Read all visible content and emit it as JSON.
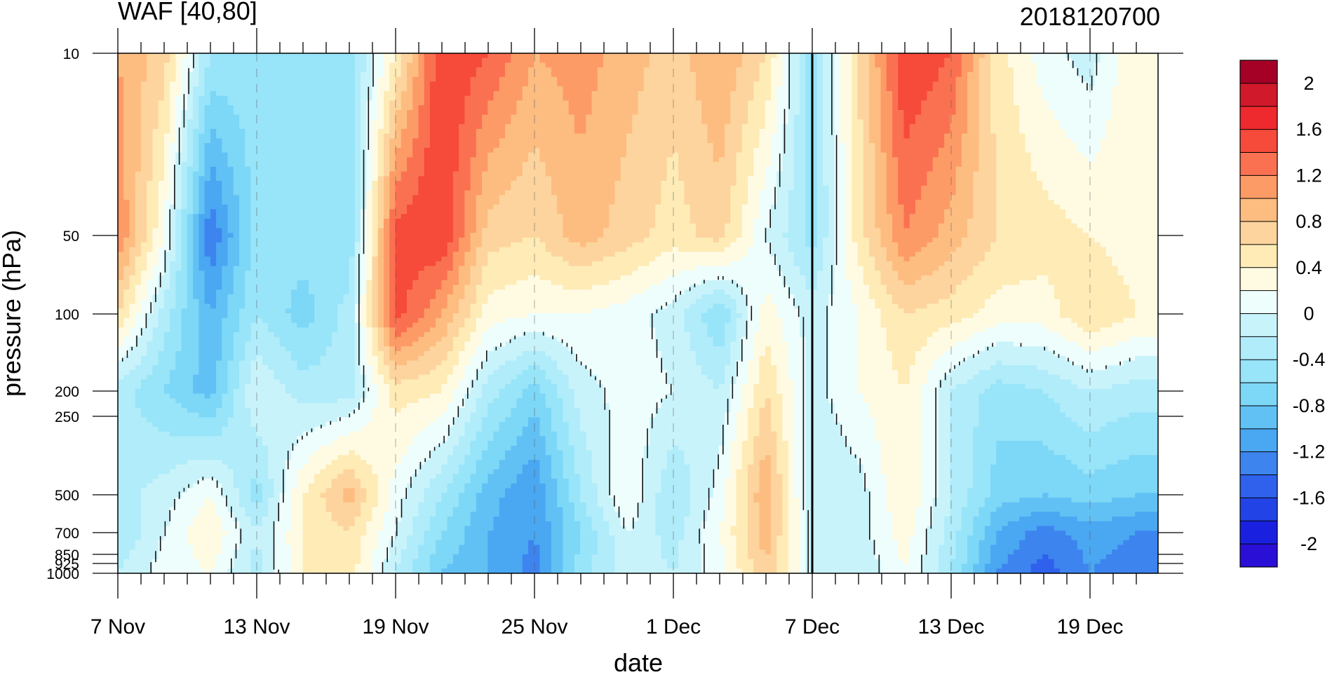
{
  "chart_data": {
    "type": "heatmap",
    "title": "WAF [40,80]",
    "subtitle": "2018120700",
    "xlabel": "date",
    "ylabel": "pressure (hPa)",
    "x_tick_labels": [
      "7 Nov",
      "13 Nov",
      "19 Nov",
      "25 Nov",
      "1 Dec",
      "7 Dec",
      "13 Dec",
      "19 Dec"
    ],
    "x_range": [
      "2018-11-07",
      "2018-12-22"
    ],
    "y_tick_labels": [
      "10",
      "50",
      "100",
      "200",
      "250",
      "500",
      "700",
      "850",
      "925",
      "1000"
    ],
    "y_levels": [
      10,
      50,
      100,
      200,
      250,
      500,
      700,
      850,
      925,
      1000
    ],
    "y_scale": "log-like pressure, inverted",
    "forecast_start_line": "7 Dec",
    "dashed_gridlines_at": [
      "13 Nov",
      "19 Nov",
      "25 Nov",
      "1 Dec",
      "13 Dec",
      "19 Dec"
    ],
    "colorbar": {
      "labels": [
        "2",
        "1.6",
        "1.2",
        "0.8",
        "0.4",
        "0",
        "-0.4",
        "-0.8",
        "-1.2",
        "-1.6",
        "-2"
      ],
      "levels": [
        2.2,
        2.0,
        1.8,
        1.6,
        1.4,
        1.2,
        1.0,
        0.8,
        0.6,
        0.4,
        0.2,
        0.0,
        -0.2,
        -0.4,
        -0.6,
        -0.8,
        -1.0,
        -1.2,
        -1.4,
        -1.6,
        -1.8,
        -2.0,
        -2.2
      ],
      "colors": [
        "#a50026",
        "#d0192b",
        "#ee2a2f",
        "#f64a3b",
        "#fa7151",
        "#fd9b67",
        "#fdbd81",
        "#fdd49e",
        "#feebb6",
        "#fffbe3",
        "#eefefd",
        "#c9f3fb",
        "#b0ecfa",
        "#98e4f9",
        "#7dd7f7",
        "#62c1f4",
        "#4aa7f2",
        "#3d84ef",
        "#2f61ec",
        "#2244e6",
        "#1a20e0",
        "#2a0fd6"
      ]
    },
    "field_description": {
      "dates": [
        "7 Nov",
        "9 Nov",
        "11 Nov",
        "13 Nov",
        "15 Nov",
        "17 Nov",
        "19 Nov",
        "21 Nov",
        "23 Nov",
        "25 Nov",
        "27 Nov",
        "29 Nov",
        "1 Dec",
        "3 Dec",
        "5 Dec",
        "7 Dec",
        "9 Dec",
        "11 Dec",
        "13 Dec",
        "15 Dec",
        "17 Dec",
        "19 Dec",
        "21 Dec"
      ],
      "rows": {
        "10": [
          1.0,
          0.7,
          -0.4,
          -0.5,
          -0.6,
          -0.5,
          0.4,
          1.6,
          1.4,
          1.0,
          1.1,
          0.9,
          0.7,
          1.0,
          0.6,
          -0.5,
          0.6,
          1.6,
          1.4,
          0.5,
          0.1,
          -0.1,
          0.4
        ],
        "50": [
          1.2,
          0.2,
          -1.4,
          -0.5,
          -0.5,
          -0.6,
          1.5,
          1.6,
          0.7,
          0.6,
          0.9,
          0.7,
          0.5,
          0.7,
          0.0,
          -0.5,
          0.5,
          1.2,
          0.9,
          0.6,
          0.5,
          0.4,
          0.3
        ],
        "100": [
          0.6,
          -0.3,
          -1.0,
          -0.4,
          -0.7,
          -0.3,
          1.5,
          1.0,
          0.3,
          0.2,
          0.2,
          0.1,
          -0.1,
          -0.6,
          0.3,
          -0.1,
          0.2,
          0.6,
          0.5,
          0.3,
          0.3,
          0.6,
          0.4
        ],
        "200": [
          -0.3,
          -0.6,
          -0.9,
          0.0,
          -0.3,
          -0.3,
          0.5,
          0.4,
          -0.3,
          -0.7,
          -0.1,
          0.1,
          0.0,
          -0.2,
          0.6,
          -0.1,
          0.2,
          0.4,
          -0.2,
          -0.5,
          -0.4,
          -0.2,
          -0.3
        ],
        "500": [
          -0.3,
          -0.1,
          0.2,
          -0.5,
          0.4,
          0.9,
          0.1,
          -0.4,
          -0.9,
          -1.2,
          -0.4,
          0.2,
          -0.4,
          0.1,
          1.0,
          -0.2,
          -0.1,
          0.4,
          -0.2,
          -0.7,
          -0.8,
          -0.7,
          -0.8
        ],
        "700": [
          -0.4,
          0.0,
          0.4,
          -0.2,
          0.4,
          0.6,
          0.0,
          -0.6,
          -1.0,
          -1.2,
          -0.6,
          0.0,
          -0.3,
          0.2,
          0.9,
          -0.1,
          -0.1,
          0.3,
          -0.3,
          -1.0,
          -1.3,
          -1.1,
          -1.2
        ],
        "1000": [
          -0.2,
          0.1,
          0.2,
          -0.3,
          0.4,
          0.5,
          -0.2,
          -0.8,
          -1.0,
          -1.3,
          -0.5,
          -0.1,
          -0.2,
          0.1,
          0.8,
          -0.1,
          -0.2,
          0.2,
          -0.4,
          -1.2,
          -1.5,
          -1.2,
          -1.3
        ]
      }
    }
  }
}
